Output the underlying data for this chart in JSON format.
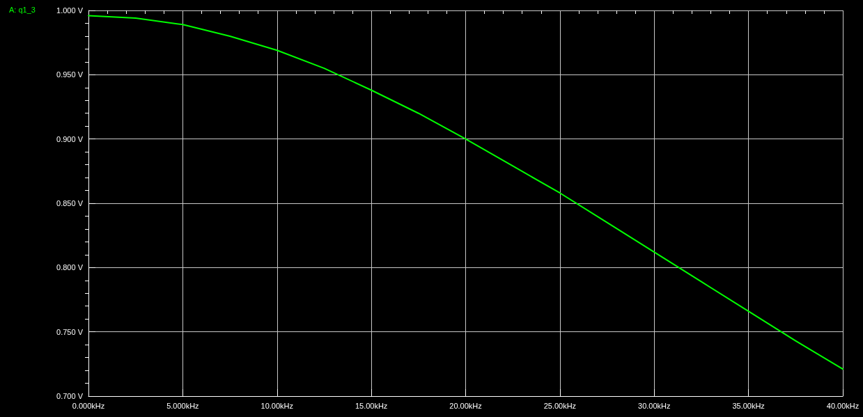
{
  "chart_data": {
    "type": "line",
    "x": [
      0,
      2.5,
      5,
      7.5,
      10,
      12.5,
      15,
      17.5,
      20,
      22.5,
      25,
      27.5,
      30,
      32.5,
      35,
      37.5,
      40
    ],
    "series": [
      {
        "name": "A: q1_3",
        "color": "#00ff00",
        "values": [
          0.996,
          0.994,
          0.989,
          0.98,
          0.969,
          0.955,
          0.938,
          0.92,
          0.9,
          0.879,
          0.858,
          0.835,
          0.812,
          0.789,
          0.766,
          0.743,
          0.721
        ]
      }
    ],
    "xlim": [
      0,
      40
    ],
    "xticks": [
      {
        "value": 0,
        "label": "0.000kHz"
      },
      {
        "value": 1,
        "label": null
      },
      {
        "value": 2,
        "label": null
      },
      {
        "value": 3,
        "label": null
      },
      {
        "value": 4,
        "label": null
      },
      {
        "value": 5,
        "label": "5.000kHz"
      },
      {
        "value": 6,
        "label": null
      },
      {
        "value": 7,
        "label": null
      },
      {
        "value": 8,
        "label": null
      },
      {
        "value": 9,
        "label": null
      },
      {
        "value": 10,
        "label": "10.00kHz"
      },
      {
        "value": 11,
        "label": null
      },
      {
        "value": 12,
        "label": null
      },
      {
        "value": 13,
        "label": null
      },
      {
        "value": 14,
        "label": null
      },
      {
        "value": 15,
        "label": "15.00kHz"
      },
      {
        "value": 16,
        "label": null
      },
      {
        "value": 17,
        "label": null
      },
      {
        "value": 18,
        "label": null
      },
      {
        "value": 19,
        "label": null
      },
      {
        "value": 20,
        "label": "20.00kHz"
      },
      {
        "value": 21,
        "label": null
      },
      {
        "value": 22,
        "label": null
      },
      {
        "value": 23,
        "label": null
      },
      {
        "value": 24,
        "label": null
      },
      {
        "value": 25,
        "label": "25.00kHz"
      },
      {
        "value": 26,
        "label": null
      },
      {
        "value": 27,
        "label": null
      },
      {
        "value": 28,
        "label": null
      },
      {
        "value": 29,
        "label": null
      },
      {
        "value": 30,
        "label": "30.00kHz"
      },
      {
        "value": 31,
        "label": null
      },
      {
        "value": 32,
        "label": null
      },
      {
        "value": 33,
        "label": null
      },
      {
        "value": 34,
        "label": null
      },
      {
        "value": 35,
        "label": "35.00kHz"
      },
      {
        "value": 36,
        "label": null
      },
      {
        "value": 37,
        "label": null
      },
      {
        "value": 38,
        "label": null
      },
      {
        "value": 39,
        "label": null
      },
      {
        "value": 40,
        "label": "40.00kHz"
      }
    ],
    "ylim": [
      0.7,
      1.0
    ],
    "yticks": [
      {
        "value": 0.7,
        "label": "0.700 V"
      },
      {
        "value": 0.71,
        "label": null
      },
      {
        "value": 0.72,
        "label": null
      },
      {
        "value": 0.73,
        "label": null
      },
      {
        "value": 0.74,
        "label": null
      },
      {
        "value": 0.75,
        "label": "0.750 V"
      },
      {
        "value": 0.76,
        "label": null
      },
      {
        "value": 0.77,
        "label": null
      },
      {
        "value": 0.78,
        "label": null
      },
      {
        "value": 0.79,
        "label": null
      },
      {
        "value": 0.8,
        "label": "0.800 V"
      },
      {
        "value": 0.81,
        "label": null
      },
      {
        "value": 0.82,
        "label": null
      },
      {
        "value": 0.83,
        "label": null
      },
      {
        "value": 0.84,
        "label": null
      },
      {
        "value": 0.85,
        "label": "0.850 V"
      },
      {
        "value": 0.86,
        "label": null
      },
      {
        "value": 0.87,
        "label": null
      },
      {
        "value": 0.88,
        "label": null
      },
      {
        "value": 0.89,
        "label": null
      },
      {
        "value": 0.9,
        "label": "0.900 V"
      },
      {
        "value": 0.91,
        "label": null
      },
      {
        "value": 0.92,
        "label": null
      },
      {
        "value": 0.93,
        "label": null
      },
      {
        "value": 0.94,
        "label": null
      },
      {
        "value": 0.95,
        "label": "0.950 V"
      },
      {
        "value": 0.96,
        "label": null
      },
      {
        "value": 0.97,
        "label": null
      },
      {
        "value": 0.98,
        "label": null
      },
      {
        "value": 0.99,
        "label": null
      },
      {
        "value": 1.0,
        "label": "1.000 V"
      }
    ],
    "grid": true,
    "legend": "top left",
    "marker": "none",
    "line_style": "solid"
  }
}
